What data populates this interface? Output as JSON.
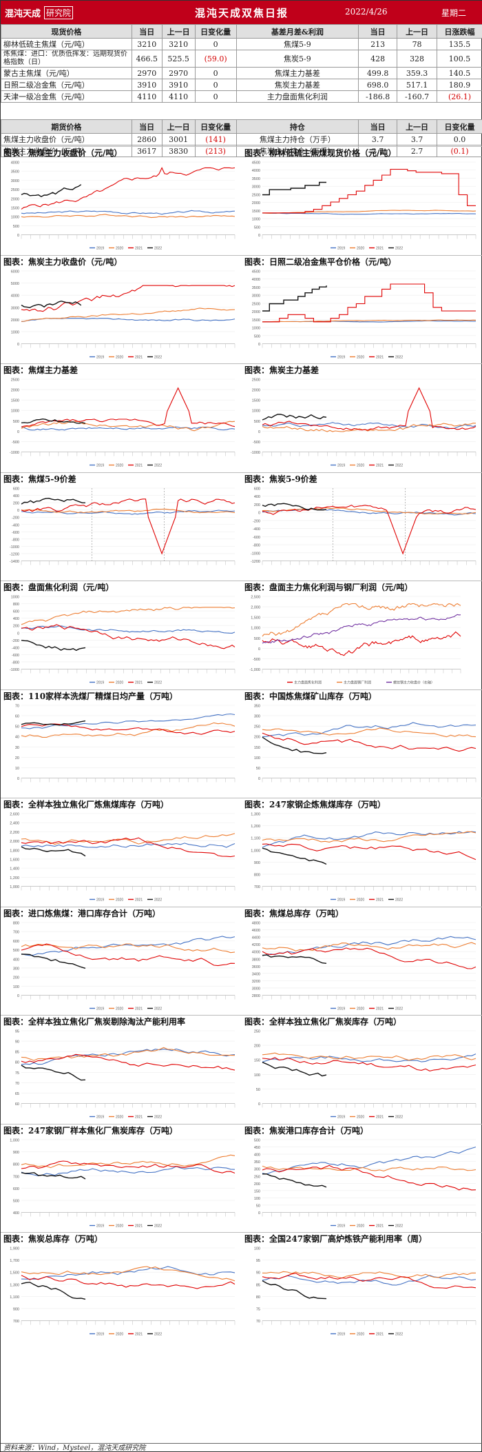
{
  "header": {
    "logo_text": "混沌天成",
    "logo_badge": "研究院",
    "title": "混沌天成双焦日报",
    "date": "2022/4/26",
    "weekday": "星期二"
  },
  "spot_table": {
    "headers": [
      "现货价格",
      "当日",
      "上一日",
      "日变化量",
      "基差月差&利润",
      "当日",
      "上一日",
      "日涨跌幅"
    ],
    "rows": [
      {
        "name": "柳林低硫主焦煤（元/吨）",
        "cur": "3210",
        "prev": "3210",
        "chg": "0",
        "chg_neg": false,
        "name2": "焦煤5-9",
        "cur2": "213",
        "prev2": "78",
        "chg2": "135.5",
        "chg2_neg": false
      },
      {
        "name": "炼焦煤：进口：优质低挥发：远期现货价格指数（日）",
        "cur": "466.5",
        "prev": "525.5",
        "chg": "(59.0)",
        "chg_neg": true,
        "name2": "焦炭5-9",
        "cur2": "428",
        "prev2": "328",
        "chg2": "100.5",
        "chg2_neg": false
      },
      {
        "name": "蒙古主焦煤（元/吨）",
        "cur": "2970",
        "prev": "2970",
        "chg": "0",
        "chg_neg": false,
        "name2": "焦煤主力基差",
        "cur2": "499.8",
        "prev2": "359.3",
        "chg2": "140.5",
        "chg2_neg": false
      },
      {
        "name": "日照二级冶金焦（元/吨）",
        "cur": "3910",
        "prev": "3910",
        "chg": "0",
        "chg_neg": false,
        "name2": "焦炭主力基差",
        "cur2": "698.0",
        "prev2": "517.1",
        "chg2": "180.9",
        "chg2_neg": false
      },
      {
        "name": "天津一级冶金焦（元/吨）",
        "cur": "4110",
        "prev": "4110",
        "chg": "0",
        "chg_neg": false,
        "name2": "主力盘面焦化利润",
        "cur2": "-186.8",
        "prev2": "-160.7",
        "chg2": "(26.1)",
        "chg2_neg": true
      }
    ]
  },
  "futures_table": {
    "headers": [
      "期货价格",
      "当日",
      "上一日",
      "日变化量",
      "持仓",
      "当日",
      "上一日",
      "日变化量"
    ],
    "rows": [
      {
        "name": "焦煤主力收盘价（元/吨）",
        "cur": "2860",
        "prev": "3001",
        "chg": "(141)",
        "chg_neg": true,
        "name2": "焦煤主力持仓（万手）",
        "cur2": "3.7",
        "prev2": "3.7",
        "chg2": "0.0",
        "chg2_neg": false
      },
      {
        "name": "焦炭主力收盘价（元/吨）",
        "cur": "3617",
        "prev": "3830",
        "chg": "(213)",
        "chg_neg": true,
        "name2": "焦炭主力持仓（万手）",
        "cur2": "2.7",
        "prev2": "2.7",
        "chg2": "(0.1)",
        "chg2_neg": true
      }
    ]
  },
  "colors": {
    "header_bg": "#c0001a",
    "s2019": "#4472c4",
    "s2020": "#ed7d31",
    "s2021": "#e00000",
    "s2022": "#111111",
    "purple": "#7030a0",
    "negative": "#d40000"
  },
  "charts": [
    {
      "title": "图表：焦煤主力收盘价（元/吨）",
      "y_ticks": [
        "4000",
        "3500",
        "3000",
        "2500",
        "2000",
        "1500",
        "1000",
        "500",
        "0"
      ],
      "legend": [
        "2019",
        "2020",
        "2021",
        "2022"
      ],
      "kind": "price1"
    },
    {
      "title": "图表：柳林低硫主焦煤现货价格（元/吨）",
      "y_ticks": [
        "4500",
        "4000",
        "3500",
        "3000",
        "2500",
        "2000",
        "1500",
        "1000",
        "500",
        "0"
      ],
      "legend": [
        "2019",
        "2020",
        "2021",
        "2022"
      ],
      "kind": "step1"
    },
    {
      "title": "图表：焦炭主力收盘价（元/吨）",
      "y_ticks": [
        "6000",
        "5000",
        "4000",
        "3000",
        "2000",
        "1000",
        "0"
      ],
      "legend": [
        "2019",
        "2020",
        "2021",
        "2022"
      ],
      "kind": "price2"
    },
    {
      "title": "图表：日照二级冶金焦平仓价格（元/吨）",
      "y_ticks": [
        "4500",
        "4000",
        "3500",
        "3000",
        "2500",
        "2000",
        "1500",
        "1000",
        "500",
        "0"
      ],
      "legend": [
        "2019",
        "2020",
        "2021",
        "2022"
      ],
      "kind": "step2"
    },
    {
      "title": "图表：焦煤主力基差",
      "y_ticks": [
        "2500",
        "2000",
        "1500",
        "1000",
        "500",
        "0",
        "-500",
        "-1000"
      ],
      "legend": [
        "2019",
        "2020",
        "2021",
        "2022"
      ],
      "kind": "basis1"
    },
    {
      "title": "图表：焦炭主力基差",
      "y_ticks": [
        "2500",
        "2000",
        "1500",
        "1000",
        "500",
        "0",
        "-500",
        "-1000"
      ],
      "legend": [
        "2019",
        "2020",
        "2021",
        "2022"
      ],
      "kind": "basis2"
    },
    {
      "title": "图表：焦煤5-9价差",
      "y_ticks": [
        "600",
        "400",
        "200",
        "0",
        "-200",
        "-400",
        "-600",
        "-800",
        "-1000",
        "-1200",
        "-1400"
      ],
      "legend": [],
      "kind": "spread1"
    },
    {
      "title": "图表：焦炭5-9价差",
      "y_ticks": [
        "600",
        "400",
        "200",
        "0",
        "-200",
        "-400",
        "-600",
        "-800",
        "-1000",
        "-1200"
      ],
      "legend": [],
      "kind": "spread2"
    },
    {
      "title": "图表：盘面焦化利润（元/吨）",
      "y_ticks": [
        "1000",
        "800",
        "600",
        "400",
        "200",
        "0",
        "-200",
        "-400",
        "-600",
        "-800",
        "-1000"
      ],
      "legend": [
        "2019",
        "2020",
        "2021",
        "2022"
      ],
      "kind": "profit1"
    },
    {
      "title": "图表：盘面主力焦化利润与钢厂利润（元/吨）",
      "y_ticks": [
        "2,500",
        "2,000",
        "1,500",
        "1,000",
        "500",
        "0",
        "-500",
        "-1,000"
      ],
      "legend": [
        "主力盘面焦化利润",
        "主力盘面钢厂利润",
        "螺纹钢主力收盘价（右轴）"
      ],
      "kind": "profit2"
    },
    {
      "title": "图表：110家样本洗煤厂精煤日均产量（万吨）",
      "y_ticks": [
        "70",
        "60",
        "50",
        "40",
        "30",
        "20",
        "10",
        "0"
      ],
      "legend": [],
      "kind": "wash"
    },
    {
      "title": "图表：中国炼焦煤矿山库存（万吨）",
      "y_ticks": [
        "350",
        "300",
        "250",
        "200",
        "150",
        "100",
        "50",
        "0"
      ],
      "legend": [],
      "kind": "mine"
    },
    {
      "title": "图表：全样本独立焦化厂炼焦煤库存（万吨）",
      "y_ticks": [
        "2,600",
        "2,400",
        "2,200",
        "2,000",
        "1,800",
        "1,600",
        "1,400",
        "1,200",
        "1,000"
      ],
      "legend": [
        "2019",
        "2020",
        "2021",
        "2022"
      ],
      "kind": "inv1"
    },
    {
      "title": "图表：247家钢企炼焦煤库存（万吨）",
      "y_ticks": [
        "1,300",
        "1,200",
        "1,100",
        "1,000",
        "900",
        "800",
        "700"
      ],
      "legend": [
        "2019",
        "2020",
        "2021",
        "2022"
      ],
      "kind": "inv2"
    },
    {
      "title": "图表：进口炼焦煤：港口库存合计（万吨）",
      "y_ticks": [
        "800",
        "700",
        "600",
        "500",
        "400",
        "300",
        "200",
        "100",
        "0"
      ],
      "legend": [
        "2019",
        "2020",
        "2021",
        "2022"
      ],
      "kind": "port1"
    },
    {
      "title": "图表：焦煤总库存（万吨）",
      "y_ticks": [
        "4800",
        "4600",
        "4400",
        "4200",
        "4000",
        "3800",
        "3600",
        "3400",
        "3200",
        "3000",
        "2800"
      ],
      "legend": [
        "2019",
        "2020",
        "2021",
        "2022"
      ],
      "kind": "total1"
    },
    {
      "title": "图表：全样本独立焦化厂焦炭剔除淘汰产能利用率",
      "y_ticks": [
        "95",
        "90",
        "85",
        "80",
        "75",
        "70",
        "65",
        "60"
      ],
      "legend": [
        "2019",
        "2020",
        "2021",
        "2022"
      ],
      "kind": "util1"
    },
    {
      "title": "图表：全样本独立焦化厂焦炭库存（万吨）",
      "y_ticks": [
        "250",
        "200",
        "150",
        "100",
        "50",
        "0"
      ],
      "legend": [
        "2019",
        "2020",
        "2021",
        "2022"
      ],
      "kind": "cokeinv1"
    },
    {
      "title": "图表：247家钢厂样本焦化厂焦炭库存（万吨）",
      "y_ticks": [
        "1,000",
        "900",
        "800",
        "700",
        "600",
        "500",
        "400"
      ],
      "legend": [
        "2019",
        "2020",
        "2021",
        "2022"
      ],
      "kind": "cokeinv2"
    },
    {
      "title": "图表：焦炭港口库存合计（万吨）",
      "y_ticks": [
        "500",
        "450",
        "400",
        "350",
        "300",
        "250",
        "200",
        "150",
        "100",
        "50",
        "0"
      ],
      "legend": [
        "2019",
        "2020",
        "2021",
        "2022"
      ],
      "kind": "cokeport"
    },
    {
      "title": "图表：焦炭总库存（万吨）",
      "y_ticks": [
        "1,900",
        "1,700",
        "1,500",
        "1,300",
        "1,100",
        "900",
        "700"
      ],
      "legend": [
        "2019",
        "2020",
        "2021",
        "2022"
      ],
      "kind": "coketotal"
    },
    {
      "title": "图表：全国247家钢厂高炉炼铁产能利用率（周）",
      "y_ticks": [
        "100",
        "95",
        "90",
        "85",
        "80",
        "75",
        "70"
      ],
      "legend": [
        "2019",
        "2020",
        "2021",
        "2022"
      ],
      "kind": "blast"
    }
  ],
  "footer": {
    "source": "资料来源：Wind，Mysteel，混沌天成研究院"
  }
}
